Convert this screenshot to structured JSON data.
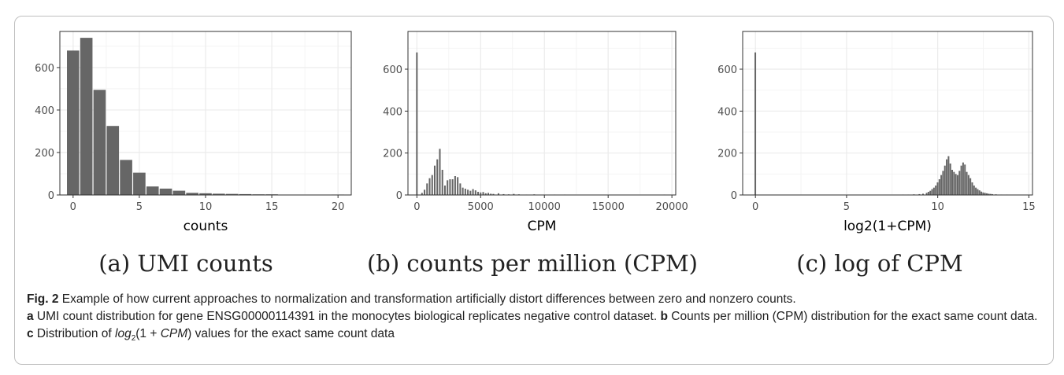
{
  "chart_data": [
    {
      "type": "bar",
      "xlabel": "counts",
      "ylabel": "",
      "xlim": [
        -1,
        21
      ],
      "ylim": [
        0,
        770
      ],
      "xticks": [
        0,
        5,
        10,
        15,
        20
      ],
      "yticks": [
        0,
        200,
        400,
        600
      ],
      "bin_width": 1,
      "x": [
        0,
        1,
        2,
        3,
        4,
        5,
        6,
        7,
        8,
        9,
        10,
        11,
        12,
        13,
        14,
        15,
        16,
        17,
        18,
        19,
        20
      ],
      "values": [
        680,
        740,
        495,
        325,
        165,
        105,
        40,
        30,
        20,
        10,
        8,
        6,
        5,
        4,
        3,
        3,
        1,
        1,
        1,
        1,
        2
      ],
      "caption": "(a) UMI counts"
    },
    {
      "type": "bar",
      "xlabel": "CPM",
      "ylabel": "",
      "xlim": [
        -700,
        20300
      ],
      "ylim": [
        0,
        780
      ],
      "xticks": [
        0,
        5000,
        10000,
        15000,
        20000
      ],
      "yticks": [
        0,
        200,
        400,
        600
      ],
      "bin_width": 200,
      "x": [
        0,
        400,
        600,
        800,
        1000,
        1200,
        1400,
        1600,
        1800,
        2000,
        2200,
        2400,
        2600,
        2800,
        3000,
        3200,
        3400,
        3600,
        3800,
        4000,
        4200,
        4400,
        4600,
        4800,
        5000,
        5200,
        5400,
        5600,
        5800,
        6000,
        6400,
        6800,
        7200,
        7600,
        8000,
        8600,
        9200,
        10000,
        10800,
        11600,
        12400,
        13400,
        14400,
        15400,
        17200,
        19400
      ],
      "values": [
        680,
        10,
        25,
        55,
        80,
        95,
        140,
        170,
        220,
        120,
        45,
        70,
        75,
        75,
        90,
        85,
        55,
        35,
        30,
        25,
        20,
        28,
        22,
        15,
        12,
        14,
        8,
        10,
        6,
        5,
        8,
        4,
        3,
        5,
        3,
        2,
        3,
        2,
        2,
        2,
        1,
        1,
        1,
        1,
        1,
        2
      ],
      "caption": "(b) counts per million (CPM)"
    },
    {
      "type": "bar",
      "xlabel": "log2(1+CPM)",
      "ylabel": "",
      "xlim": [
        -0.7,
        15.2
      ],
      "ylim": [
        0,
        780
      ],
      "xticks": [
        0,
        5,
        10,
        15
      ],
      "yticks": [
        0,
        200,
        400,
        600
      ],
      "bin_width": 0.1,
      "x": [
        0,
        7.8,
        8.1,
        8.4,
        8.7,
        9.0,
        9.2,
        9.4,
        9.5,
        9.6,
        9.7,
        9.8,
        9.9,
        10.0,
        10.1,
        10.2,
        10.3,
        10.4,
        10.5,
        10.6,
        10.7,
        10.8,
        10.9,
        11.0,
        11.1,
        11.2,
        11.3,
        11.4,
        11.5,
        11.6,
        11.7,
        11.8,
        11.9,
        12.0,
        12.1,
        12.2,
        12.3,
        12.4,
        12.5,
        12.6,
        12.7,
        12.8,
        12.9,
        13.0,
        13.2,
        13.5,
        13.8,
        14.2
      ],
      "values": [
        680,
        1,
        2,
        2,
        3,
        4,
        6,
        10,
        15,
        20,
        28,
        35,
        45,
        60,
        75,
        95,
        115,
        140,
        170,
        185,
        150,
        120,
        110,
        100,
        95,
        115,
        140,
        155,
        145,
        110,
        95,
        80,
        60,
        45,
        35,
        28,
        22,
        16,
        12,
        10,
        8,
        6,
        5,
        4,
        3,
        2,
        2,
        1
      ],
      "caption": "(c) log of CPM"
    }
  ],
  "caption": {
    "fig_label": "Fig. 2",
    "fig_text": " Example of how current approaches to normalization and transformation artificially distort differences between zero and nonzero counts.",
    "a_label": "a",
    "a_text": " UMI count distribution for gene ENSG00000114391 in the monocytes biological replicates negative control dataset. ",
    "b_label": "b",
    "b_text": " Counts per million (CPM) distribution for the exact same count data. ",
    "c_label": "c",
    "c_text": " Distribution of ",
    "c_math_log": "log",
    "c_math_sub": "2",
    "c_math_arg": "(1 + ",
    "c_math_var": "CPM",
    "c_math_close": ")",
    "c_text_end": " values for the exact same count data"
  },
  "colors": {
    "bar": "#666666",
    "panel_border": "#333333",
    "grid_major": "#ebebeb",
    "grid_minor": "#f4f4f4",
    "tick_text": "#4d4d4d",
    "axis_title": "#000000"
  }
}
